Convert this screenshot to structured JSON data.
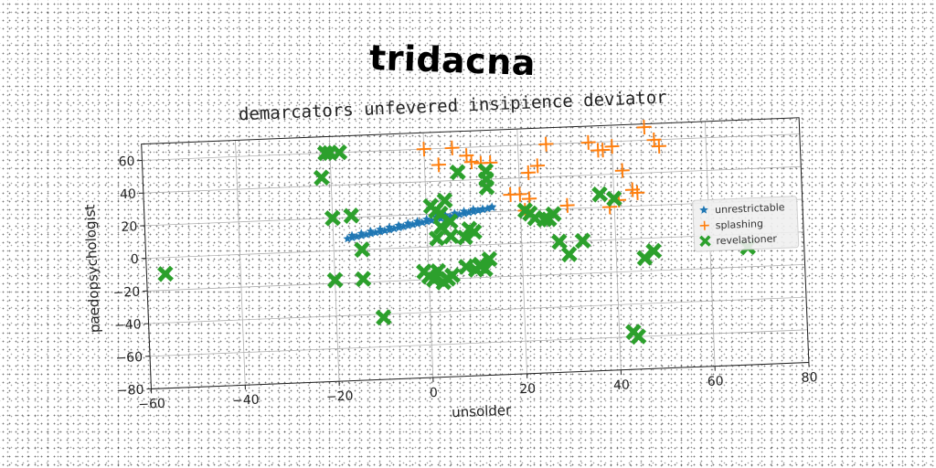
{
  "brand": "tridacna",
  "chart_data": {
    "type": "scatter",
    "title": "demarcators unfevered insipience deviator",
    "xlabel": "unsolder",
    "ylabel": "paedopsychologist",
    "xlim": [
      -60,
      80
    ],
    "ylim": [
      -80,
      70
    ],
    "xticks": [
      "−60",
      "−40",
      "−20",
      "0",
      "20",
      "40",
      "60",
      "80"
    ],
    "yticks": [
      "−80",
      "−60",
      "−40",
      "−20",
      "0",
      "20",
      "40",
      "60"
    ],
    "grid": true,
    "legend_position": "right",
    "series": [
      {
        "name": "unrestrictable",
        "marker": "star",
        "color": "#1f77b4",
        "x": [
          -17,
          -16,
          -15,
          -14,
          -13,
          -12,
          -11,
          -10,
          -9,
          -8,
          -7,
          -6,
          -5,
          -4,
          -3,
          -2,
          -1,
          0,
          1,
          2,
          3,
          4,
          5,
          6,
          7,
          8,
          9,
          10,
          11,
          12,
          13,
          14,
          -16,
          -14,
          -12,
          -10,
          -8,
          -6,
          -4,
          -2,
          0,
          2,
          4,
          6,
          8,
          10,
          12,
          14
        ],
        "y": [
          7,
          7.5,
          8,
          8.5,
          9,
          9.5,
          10,
          10.5,
          11,
          11.5,
          12,
          12.5,
          13,
          13.5,
          14,
          14.5,
          15,
          15.5,
          16,
          16.5,
          17,
          17.5,
          18,
          18.5,
          19,
          19.5,
          20,
          20.5,
          21,
          21.5,
          22,
          22.5,
          9,
          10,
          11,
          12,
          13,
          14,
          15,
          16,
          17,
          18,
          19,
          20,
          21,
          22,
          22,
          23
        ]
      },
      {
        "name": "splashing",
        "marker": "plus",
        "color": "#ff7f0e",
        "x": [
          0,
          3,
          6,
          9,
          10,
          12,
          14,
          22,
          24,
          26,
          18,
          20,
          22,
          21,
          35,
          37,
          38,
          40,
          42,
          44,
          39,
          41,
          45,
          47,
          49,
          50,
          30
        ],
        "y": [
          60,
          50,
          60,
          55,
          51,
          50,
          50,
          43,
          47,
          60,
          30,
          30,
          27,
          20,
          60,
          55,
          55,
          57,
          42,
          30,
          20,
          24,
          28,
          68,
          60,
          56,
          22
        ],
        "extra_points": "several near (25,45),(20,28),(36,65)"
      },
      {
        "name": "revelationer",
        "marker": "x",
        "color": "#2ca02c",
        "x": [
          -56,
          -21,
          -20,
          -18,
          -22,
          -20,
          -16,
          -14,
          -20,
          -14,
          -10,
          1,
          2,
          3,
          4,
          3,
          5,
          7,
          8,
          9,
          10,
          11,
          12,
          13,
          13,
          13,
          2,
          1,
          0,
          -1,
          3,
          4,
          5,
          8,
          10,
          11,
          13,
          21,
          22,
          23,
          25,
          26,
          27,
          28,
          30,
          33,
          37,
          40,
          46,
          48,
          68,
          43,
          44,
          2,
          5
        ],
        "y": [
          -10,
          60,
          60,
          60,
          45,
          20,
          21,
          0,
          -18,
          -18,
          -42,
          25,
          22,
          20,
          28,
          12,
          15,
          45,
          5,
          10,
          8,
          -13,
          -15,
          35,
          40,
          45,
          -15,
          -20,
          -18,
          -15,
          -22,
          -20,
          -18,
          -13,
          -15,
          -12,
          -9,
          20,
          18,
          15,
          14,
          14,
          17,
          0,
          -8,
          0,
          28,
          25,
          -12,
          -8,
          -8,
          -57,
          -60,
          5,
          6
        ]
      }
    ]
  },
  "colors": {
    "series1": "#1f77b4",
    "series2": "#ff7f0e",
    "series3": "#2ca02c"
  }
}
